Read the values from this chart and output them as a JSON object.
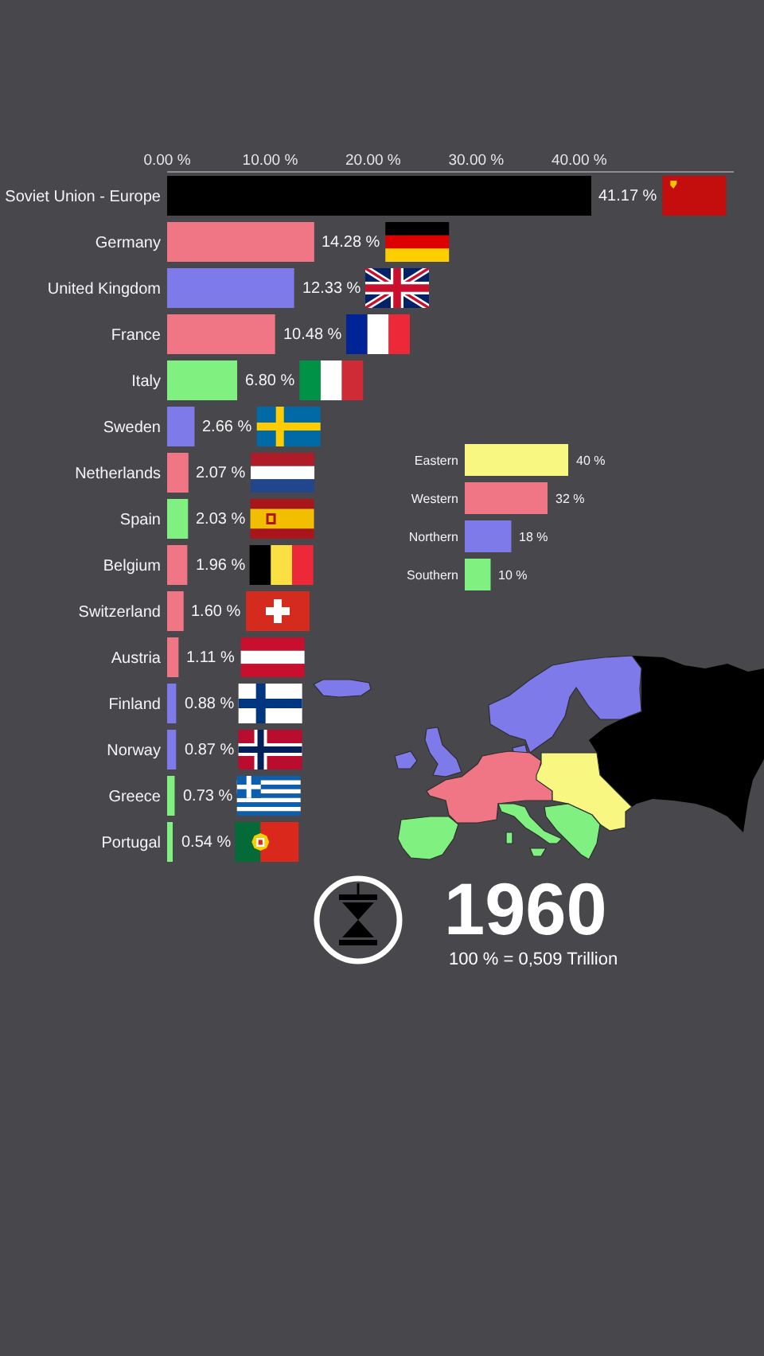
{
  "chart_data": [
    {
      "type": "bar",
      "orientation": "horizontal",
      "categories": [
        "Soviet Union - Europe",
        "Germany",
        "United Kingdom",
        "France",
        "Italy",
        "Sweden",
        "Netherlands",
        "Spain",
        "Belgium",
        "Switzerland",
        "Austria",
        "Finland",
        "Norway",
        "Greece",
        "Portugal"
      ],
      "values": [
        41.17,
        14.28,
        12.33,
        10.48,
        6.8,
        2.66,
        2.07,
        2.03,
        1.96,
        1.6,
        1.11,
        0.88,
        0.87,
        0.73,
        0.54
      ],
      "colors": [
        "#000000",
        "#f07585",
        "#7f7aea",
        "#f07585",
        "#80f080",
        "#7f7aea",
        "#f07585",
        "#80f080",
        "#f07585",
        "#f07585",
        "#f07585",
        "#7f7aea",
        "#7f7aea",
        "#80f080",
        "#80f080"
      ],
      "value_labels": [
        "41.17 %",
        "14.28 %",
        "12.33 %",
        "10.48 %",
        "6.80 %",
        "2.66 %",
        "2.07 %",
        "2.03 %",
        "1.96 %",
        "1.60 %",
        "1.11 %",
        "0.88 %",
        "0.87 %",
        "0.73 %",
        "0.54 %"
      ],
      "xlim": [
        0,
        55
      ],
      "xticks": [
        {
          "value": 0,
          "label": "0.00 %"
        },
        {
          "value": 10,
          "label": "10.00 %"
        },
        {
          "value": 20,
          "label": "20.00 %"
        },
        {
          "value": 30,
          "label": "30.00 %"
        },
        {
          "value": 40,
          "label": "40.00 %"
        }
      ],
      "annotations": [
        "1960",
        "100 % = 0,509 Trillion"
      ]
    },
    {
      "type": "bar",
      "orientation": "horizontal",
      "categories": [
        "Eastern",
        "Western",
        "Northern",
        "Southern"
      ],
      "values": [
        40,
        32,
        18,
        10
      ],
      "colors": [
        "#f7f781",
        "#f07585",
        "#7f7aea",
        "#80f080"
      ],
      "value_labels": [
        "40 %",
        "32 %",
        "18 %",
        "10 %"
      ],
      "tick_labels": "y"
    }
  ]
}
